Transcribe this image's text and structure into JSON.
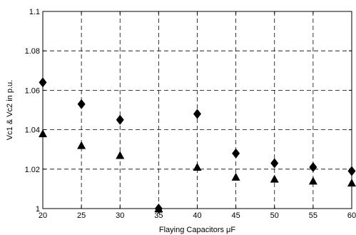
{
  "chart_data": {
    "type": "scatter",
    "title": "",
    "xlabel": "Flaying Capacitors    μF",
    "ylabel": "Vc1 & Vc2  in p.u.",
    "xlim": [
      20,
      60
    ],
    "ylim": [
      1.0,
      1.1
    ],
    "xticks": [
      20,
      25,
      30,
      35,
      40,
      45,
      50,
      55,
      60
    ],
    "yticks": [
      1.0,
      1.02,
      1.04,
      1.06,
      1.08,
      1.1
    ],
    "xtick_labels": [
      "20",
      "25",
      "30",
      "35",
      "40",
      "45",
      "50",
      "55",
      "60"
    ],
    "ytick_labels": [
      "1",
      "1.02",
      "1.04",
      "1.06",
      "1.08",
      "1.1"
    ],
    "grid": true,
    "series": [
      {
        "marker": "diamond",
        "color": "#000000",
        "x": [
          20,
          25,
          30,
          35,
          40,
          45,
          50,
          55,
          60
        ],
        "y": [
          1.064,
          1.053,
          1.045,
          1.0,
          1.048,
          1.028,
          1.023,
          1.021,
          1.019
        ]
      },
      {
        "marker": "triangle",
        "color": "#000000",
        "x": [
          20,
          25,
          30,
          35,
          40,
          45,
          50,
          55,
          60
        ],
        "y": [
          1.038,
          1.032,
          1.027,
          1.0,
          1.021,
          1.016,
          1.015,
          1.014,
          1.013
        ]
      }
    ]
  }
}
